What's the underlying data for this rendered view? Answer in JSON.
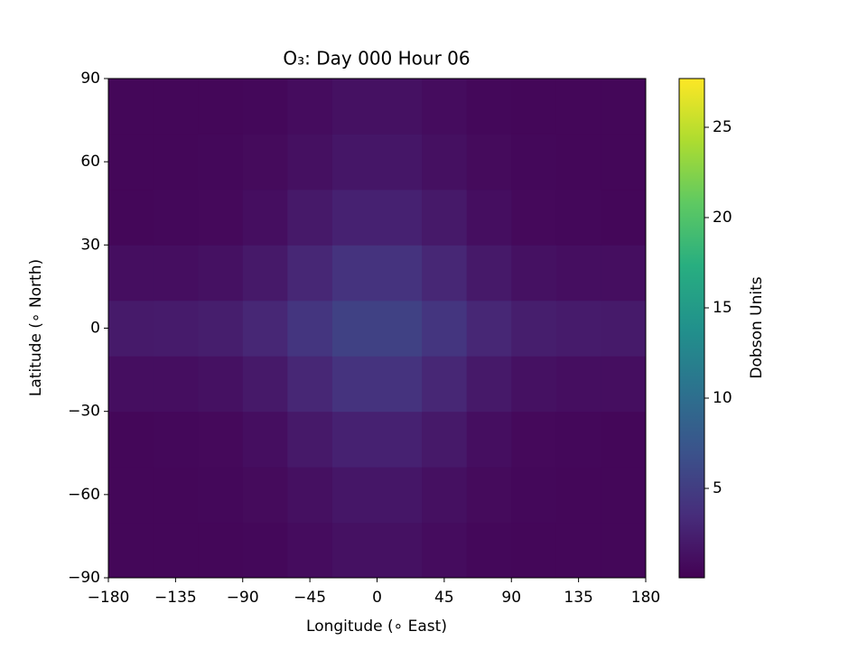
{
  "chart_data": {
    "type": "heatmap",
    "title": "O₃: Day 000 Hour 06",
    "x_label": "Longitude (∘ East)",
    "y_label": "Latitude (∘ North)",
    "colorbar_label": "Dobson Units",
    "colormap": "viridis",
    "x": [
      -165,
      -135,
      -105,
      -75,
      -45,
      -15,
      15,
      45,
      75,
      105,
      135,
      165
    ],
    "y": [
      -80,
      -60,
      -40,
      -20,
      0,
      20,
      40,
      60,
      80
    ],
    "z": [
      [
        0.5,
        0.5,
        0.5,
        0.6,
        0.9,
        1.3,
        1.3,
        0.9,
        0.6,
        0.5,
        0.5,
        0.5
      ],
      [
        0.5,
        0.5,
        0.6,
        0.8,
        1.2,
        1.7,
        1.7,
        1.2,
        0.8,
        0.6,
        0.5,
        0.5
      ],
      [
        0.5,
        0.6,
        0.7,
        1.1,
        1.9,
        2.6,
        2.6,
        1.9,
        1.1,
        0.7,
        0.6,
        0.5
      ],
      [
        1.1,
        1.1,
        1.3,
        1.9,
        3.0,
        4.1,
        4.1,
        3.0,
        1.9,
        1.3,
        1.1,
        1.1
      ],
      [
        2.0,
        2.1,
        2.3,
        3.0,
        4.3,
        5.4,
        5.4,
        4.3,
        3.0,
        2.3,
        2.1,
        2.0
      ],
      [
        1.1,
        1.1,
        1.3,
        1.9,
        3.0,
        4.1,
        4.1,
        3.0,
        1.9,
        1.3,
        1.1,
        1.1
      ],
      [
        0.5,
        0.6,
        0.7,
        1.1,
        1.9,
        2.6,
        2.6,
        1.9,
        1.1,
        0.7,
        0.6,
        0.5
      ],
      [
        0.5,
        0.5,
        0.6,
        0.8,
        1.2,
        1.7,
        1.7,
        1.2,
        0.8,
        0.6,
        0.5,
        0.5
      ],
      [
        0.5,
        0.5,
        0.5,
        0.6,
        0.9,
        1.3,
        1.3,
        0.9,
        0.6,
        0.5,
        0.5,
        0.5
      ]
    ],
    "xlim": [
      -180,
      180
    ],
    "xticks": [
      {
        "value": -180,
        "label": "−180"
      },
      {
        "value": -135,
        "label": "−135"
      },
      {
        "value": -90,
        "label": "−90"
      },
      {
        "value": -45,
        "label": "−45"
      },
      0,
      45,
      90,
      135,
      180
    ],
    "ylim": [
      -90,
      90
    ],
    "yticks": [
      {
        "value": -90,
        "label": "−90"
      },
      {
        "value": -60,
        "label": "−60"
      },
      {
        "value": -30,
        "label": "−30"
      },
      0,
      30,
      60,
      90
    ],
    "clim": [
      0.05,
      27.7
    ],
    "cticks": [
      5,
      10,
      15,
      20,
      25
    ]
  }
}
